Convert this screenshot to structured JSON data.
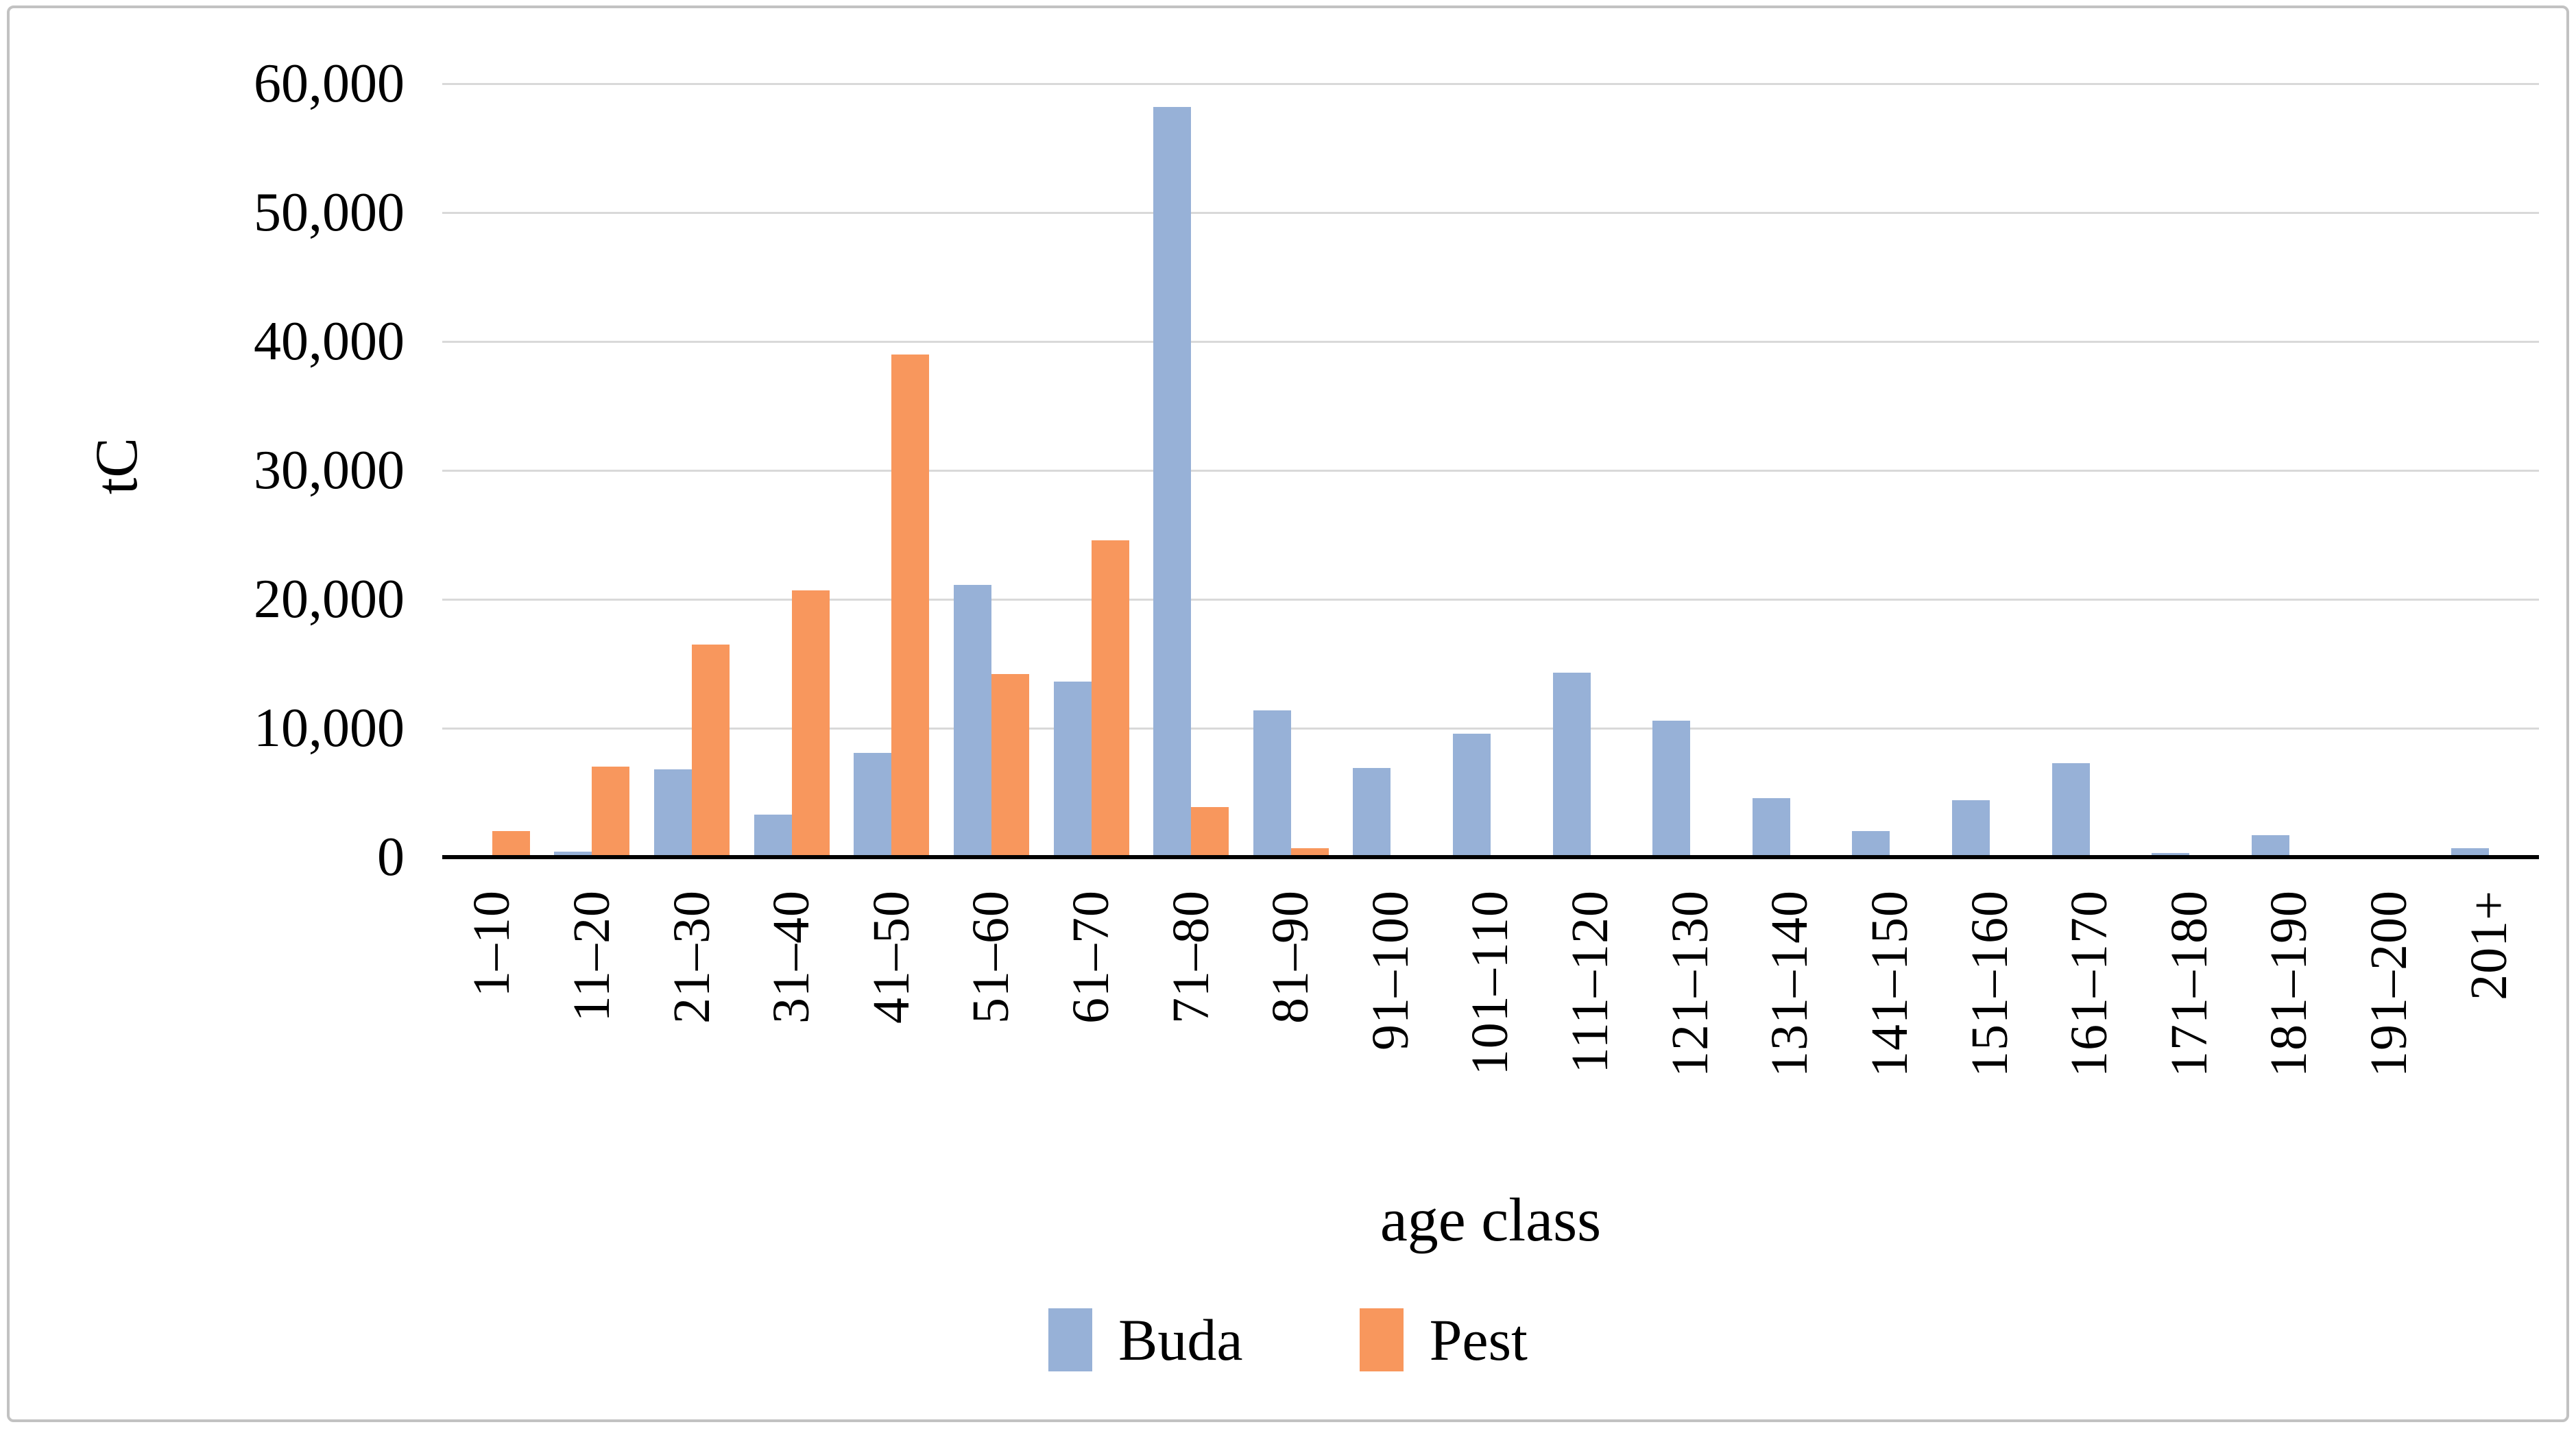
{
  "figure": {
    "background": "#ffffff",
    "border_color": "#c2c2c2",
    "gridline_color": "#d9d9d9",
    "axis_line_color": "#000000"
  },
  "y_axis": {
    "title": "tC",
    "tick_labels": [
      "0",
      "10,000",
      "20,000",
      "30,000",
      "40,000",
      "50,000",
      "60,000"
    ],
    "tick_values": [
      0,
      10000,
      20000,
      30000,
      40000,
      50000,
      60000
    ]
  },
  "x_axis": {
    "title": "age class"
  },
  "legend": {
    "items": [
      {
        "label": "Buda",
        "color": "#97B1D7"
      },
      {
        "label": "Pest",
        "color": "#F8975D"
      }
    ],
    "position": "bottom"
  },
  "chart_data": {
    "type": "bar",
    "title": "",
    "xlabel": "age class",
    "ylabel": "tC",
    "ylim": [
      0,
      60000
    ],
    "grid": true,
    "categories": [
      "1–10",
      "11–20",
      "21–30",
      "31–40",
      "41–50",
      "51–60",
      "61–70",
      "71–80",
      "81–90",
      "91–100",
      "101–110",
      "111–120",
      "121–130",
      "131–140",
      "141–150",
      "151–160",
      "161–170",
      "171–180",
      "181–190",
      "191–200",
      "201+"
    ],
    "series": [
      {
        "name": "Buda",
        "color": "#97B1D7",
        "values": [
          0,
          400,
          6800,
          3300,
          8100,
          21100,
          13600,
          58200,
          11400,
          6900,
          9600,
          14300,
          10600,
          4600,
          2000,
          4400,
          7300,
          300,
          1700,
          0,
          700
        ]
      },
      {
        "name": "Pest",
        "color": "#F8975D",
        "values": [
          2000,
          7000,
          16500,
          20700,
          39000,
          14200,
          24600,
          3900,
          700,
          0,
          0,
          0,
          0,
          0,
          0,
          0,
          0,
          0,
          0,
          0,
          0
        ]
      }
    ]
  }
}
